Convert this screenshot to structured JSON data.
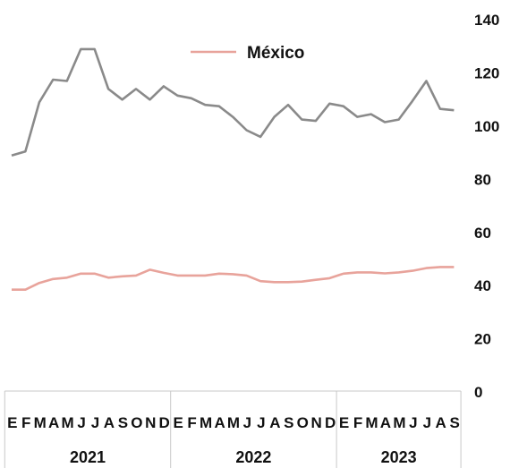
{
  "chart_data": {
    "type": "line",
    "legend": {
      "position": "top-center",
      "entries": [
        "México"
      ]
    },
    "ylim": [
      0,
      140
    ],
    "yticks": [
      "0",
      "20",
      "40",
      "60",
      "80",
      "100",
      "120",
      "140"
    ],
    "month_letters": [
      "E",
      "F",
      "M",
      "A",
      "M",
      "J",
      "J",
      "A",
      "S",
      "O",
      "N",
      "D",
      "E",
      "F",
      "M",
      "A",
      "M",
      "J",
      "J",
      "A",
      "S",
      "O",
      "N",
      "D",
      "E",
      "F",
      "M",
      "A",
      "M",
      "J",
      "J",
      "A",
      "S"
    ],
    "years": [
      {
        "label": "2021",
        "months": 12
      },
      {
        "label": "2022",
        "months": 12
      },
      {
        "label": "2023",
        "months": 9
      }
    ],
    "series": [
      {
        "name": "",
        "color": "#8a8a8a",
        "values": [
          89,
          90.5,
          109,
          117.5,
          117,
          129,
          129,
          114,
          110,
          114,
          110,
          115,
          111.5,
          110.5,
          108,
          107.5,
          103.5,
          98.5,
          96,
          103.5,
          108,
          102.5,
          102,
          108.5,
          107.5,
          103.5,
          104.5,
          101.5,
          102.5,
          109.5,
          117,
          106.5,
          106
        ]
      },
      {
        "name": "México",
        "color": "#e8a39b",
        "values": [
          38.5,
          38.5,
          41,
          42.5,
          43,
          44.5,
          44.5,
          43,
          43.5,
          43.8,
          46,
          44.8,
          43.8,
          43.8,
          43.8,
          44.5,
          44.3,
          43.8,
          41.7,
          41.3,
          41.3,
          41.5,
          42.2,
          42.8,
          44.5,
          45,
          45,
          44.6,
          45,
          45.6,
          46.6,
          47,
          47
        ]
      }
    ]
  }
}
